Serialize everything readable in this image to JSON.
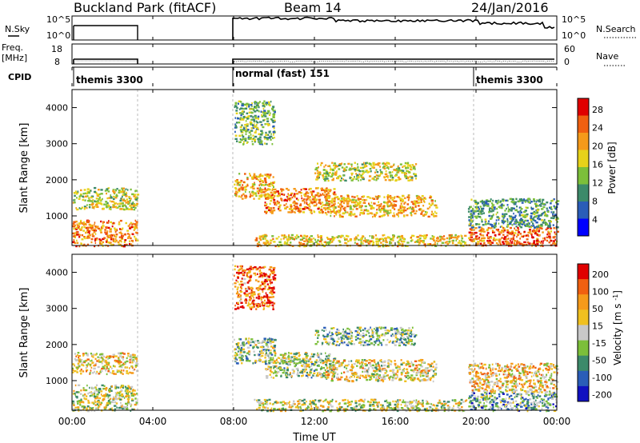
{
  "header": {
    "title": "Buckland Park (fitACF)",
    "beam": "Beam 14",
    "date": "24/Jan/2016"
  },
  "noise_panel": {
    "left_label": "N.Sky",
    "right_label": "N.Search",
    "left_ticks": [
      "10^5",
      "10^0"
    ],
    "right_ticks": [
      "10^5",
      "10^0"
    ]
  },
  "freq_panel": {
    "left_label_1": "Freq.",
    "left_label_2": "[MHz]",
    "left_ticks": [
      "18",
      "8"
    ],
    "right_label": "Nave",
    "right_ticks": [
      "60",
      "0"
    ]
  },
  "cpid_panel": {
    "label": "CPID",
    "segments": [
      "themis 3300",
      "normal (fast) 151",
      "themis 3300"
    ]
  },
  "x_axis": {
    "label": "Time UT",
    "ticks": [
      "00:00",
      "04:00",
      "08:00",
      "12:00",
      "16:00",
      "20:00",
      "00:00"
    ]
  },
  "colors": {
    "power_scale": [
      "#0000ff",
      "#2a5db8",
      "#3c8a6a",
      "#7cbf3a",
      "#e6d21a",
      "#f59a1a",
      "#f06010",
      "#e00000"
    ],
    "velocity_scale": [
      "#1010c0",
      "#2a5db8",
      "#3c8a6a",
      "#7cbf3a",
      "#c8c8c8",
      "#f0c020",
      "#f59a1a",
      "#f06010",
      "#e00000"
    ]
  },
  "chart_data": [
    {
      "type": "heatmap",
      "panel": "power",
      "xlabel": "Time UT",
      "ylabel": "Slant Range [km]",
      "xlim": [
        0,
        24
      ],
      "ylim": [
        180,
        4500
      ],
      "y_ticks": [
        "1000",
        "2000",
        "3000",
        "4000"
      ],
      "colorbar_label": "Power [dB]",
      "colorbar_ticks": [
        "28",
        "24",
        "20",
        "16",
        "12",
        "8",
        "4"
      ],
      "colorbar_range": [
        0,
        30
      ],
      "regions": [
        {
          "t": [
            0,
            3.2
          ],
          "r": [
            180,
            900
          ],
          "value": 22
        },
        {
          "t": [
            0,
            3.2
          ],
          "r": [
            1200,
            1800
          ],
          "value": 15
        },
        {
          "t": [
            8.0,
            10.0
          ],
          "r": [
            1500,
            2200
          ],
          "value": 20
        },
        {
          "t": [
            8.0,
            10.0
          ],
          "r": [
            3000,
            4200
          ],
          "value": 12
        },
        {
          "t": [
            9.5,
            13.0
          ],
          "r": [
            1100,
            1800
          ],
          "value": 22
        },
        {
          "t": [
            12.5,
            18.0
          ],
          "r": [
            1000,
            1600
          ],
          "value": 20
        },
        {
          "t": [
            12.0,
            17.0
          ],
          "r": [
            2000,
            2500
          ],
          "value": 16
        },
        {
          "t": [
            9.0,
            19.5
          ],
          "r": [
            180,
            500
          ],
          "value": 18
        },
        {
          "t": [
            19.6,
            24
          ],
          "r": [
            180,
            700
          ],
          "value": 24
        },
        {
          "t": [
            19.6,
            24
          ],
          "r": [
            700,
            1500
          ],
          "value": 10
        }
      ]
    },
    {
      "type": "heatmap",
      "panel": "velocity",
      "xlabel": "Time UT",
      "ylabel": "Slant Range [km]",
      "xlim": [
        0,
        24
      ],
      "ylim": [
        180,
        4500
      ],
      "y_ticks": [
        "1000",
        "2000",
        "3000",
        "4000"
      ],
      "colorbar_label": "Velocity [m s^-1]",
      "colorbar_ticks": [
        "200",
        "100",
        "50",
        "15",
        "-15",
        "-50",
        "-100",
        "-200"
      ],
      "colorbar_range": [
        -250,
        250
      ],
      "regions": [
        {
          "t": [
            0,
            3.2
          ],
          "r": [
            180,
            900
          ],
          "value": 0
        },
        {
          "t": [
            0,
            3.2
          ],
          "r": [
            1200,
            1800
          ],
          "value": 50
        },
        {
          "t": [
            8.0,
            10.0
          ],
          "r": [
            1500,
            2200
          ],
          "value": -40
        },
        {
          "t": [
            8.0,
            10.0
          ],
          "r": [
            3000,
            4200
          ],
          "value": 150
        },
        {
          "t": [
            9.5,
            13.0
          ],
          "r": [
            1100,
            1800
          ],
          "value": -20
        },
        {
          "t": [
            12.5,
            18.0
          ],
          "r": [
            1000,
            1600
          ],
          "value": 30
        },
        {
          "t": [
            12.0,
            17.0
          ],
          "r": [
            2000,
            2500
          ],
          "value": -60
        },
        {
          "t": [
            9.0,
            19.5
          ],
          "r": [
            180,
            500
          ],
          "value": 0
        },
        {
          "t": [
            19.6,
            24
          ],
          "r": [
            180,
            700
          ],
          "value": -80
        },
        {
          "t": [
            19.6,
            24
          ],
          "r": [
            700,
            1500
          ],
          "value": 60
        }
      ]
    }
  ]
}
